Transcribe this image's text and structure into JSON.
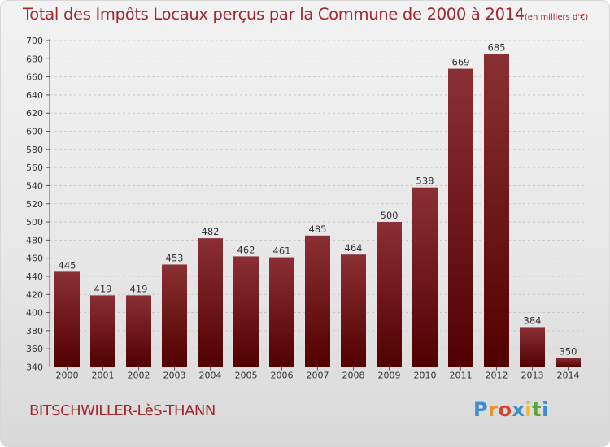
{
  "title": "Total des Impôts Locaux perçus par la Commune de 2000 à 2014",
  "unit": "(en milliers d'€)",
  "commune": "BITSCHWILLER-LèS-THANN",
  "logo": {
    "letters": [
      "P",
      "r",
      "o",
      "x",
      "i",
      "t",
      "i"
    ],
    "colors": [
      "#3a8fd0",
      "#e8932a",
      "#d4442e",
      "#3a8fd0",
      "#f0b82a",
      "#5aa83a",
      "#3a8fd0"
    ]
  },
  "colors": {
    "accent": "#a0282e",
    "bar_top": "#8a3035",
    "bar_bottom": "#520000"
  },
  "chart_data": {
    "type": "bar",
    "title": "Total des Impôts Locaux perçus par la Commune de 2000 à 2014",
    "xlabel": "",
    "ylabel": "",
    "categories": [
      "2000",
      "2001",
      "2002",
      "2003",
      "2004",
      "2005",
      "2006",
      "2007",
      "2008",
      "2009",
      "2010",
      "2011",
      "2012",
      "2013",
      "2014"
    ],
    "values": [
      445,
      419,
      419,
      453,
      482,
      462,
      461,
      485,
      464,
      500,
      538,
      669,
      685,
      384,
      350
    ],
    "ylim": [
      340,
      700
    ],
    "yticks": [
      340,
      360,
      380,
      400,
      420,
      440,
      460,
      480,
      500,
      520,
      540,
      560,
      580,
      600,
      620,
      640,
      660,
      680,
      700
    ],
    "grid": true
  }
}
